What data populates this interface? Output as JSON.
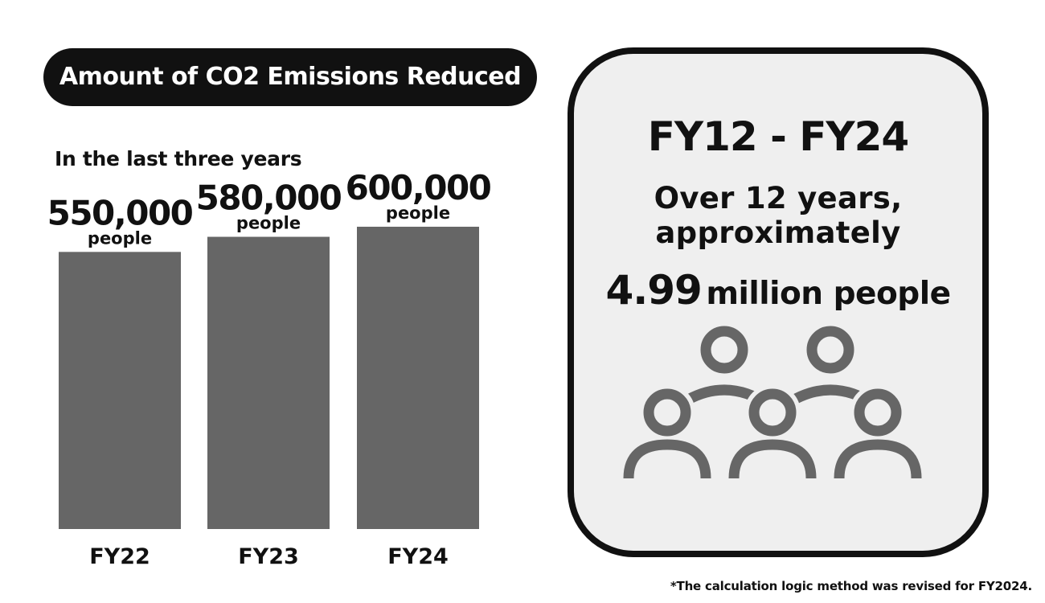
{
  "header": {
    "title": "Amount of CO2 Emissions Reduced",
    "subtitle": "In the last three years"
  },
  "chart_data": {
    "type": "bar",
    "categories": [
      "FY22",
      "FY23",
      "FY24"
    ],
    "values": [
      550000,
      580000,
      600000
    ],
    "value_labels": [
      "550,000",
      "580,000",
      "600,000"
    ],
    "unit_label": "people",
    "bar_color": "#666666",
    "ylim": [
      0,
      600000
    ],
    "grid": false
  },
  "summary": {
    "period": "FY12 - FY24",
    "sentence_line1": "Over 12 years,",
    "sentence_line2": "approximately",
    "total_number": "4.99",
    "total_unit": "million people",
    "panel_bg": "#efefef",
    "icon_name": "people-group-icon",
    "icon_color": "#666666"
  },
  "footnote": "*The calculation logic method was revised for FY2024."
}
